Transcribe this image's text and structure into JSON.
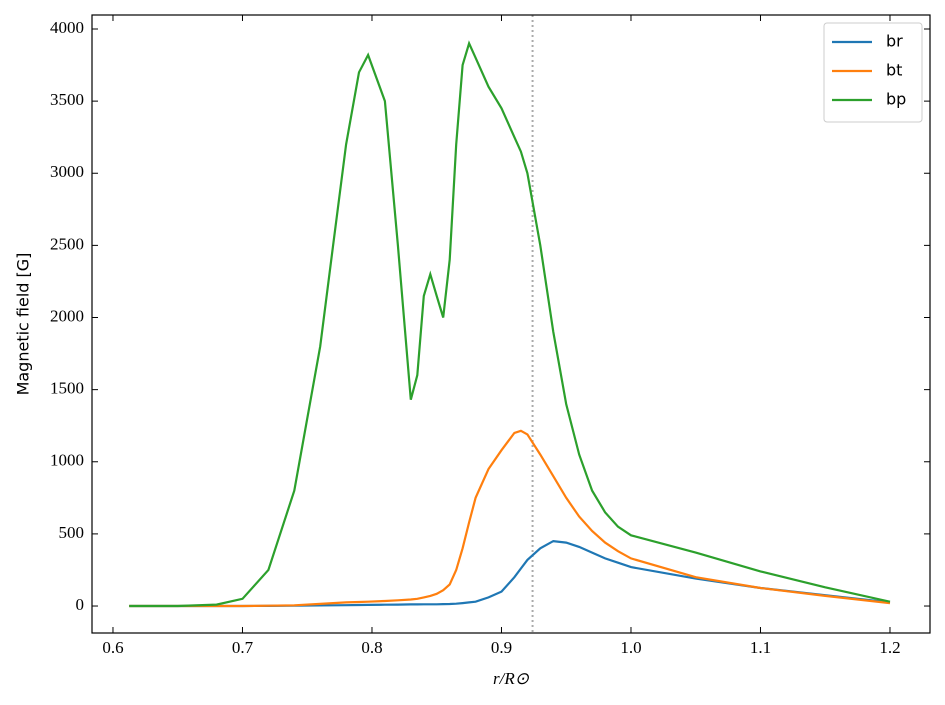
{
  "chart_data": {
    "type": "line",
    "xlabel": "r/R⊙",
    "ylabel": "Magnetic field [G]",
    "x": [
      0.6125,
      0.65,
      0.68,
      0.7,
      0.72,
      0.74,
      0.76,
      0.77,
      0.78,
      0.79,
      0.797,
      0.81,
      0.82,
      0.83,
      0.835,
      0.84,
      0.845,
      0.85,
      0.855,
      0.86,
      0.865,
      0.87,
      0.875,
      0.88,
      0.89,
      0.9,
      0.91,
      0.915,
      0.92,
      0.93,
      0.94,
      0.95,
      0.96,
      0.97,
      0.98,
      0.99,
      1.0,
      1.05,
      1.1,
      1.15,
      1.2
    ],
    "series": [
      {
        "name": "br",
        "color": "#1f77b4",
        "values": [
          0,
          0,
          0,
          0,
          1,
          2,
          4,
          5,
          6,
          7,
          8,
          9,
          10,
          11,
          11,
          12,
          12,
          12,
          13,
          14,
          16,
          20,
          25,
          30,
          60,
          100,
          200,
          260,
          320,
          400,
          450,
          440,
          410,
          370,
          330,
          300,
          270,
          190,
          125,
          75,
          25
        ]
      },
      {
        "name": "bt",
        "color": "#ff7f0e",
        "values": [
          0,
          0,
          0,
          0,
          2,
          5,
          15,
          20,
          25,
          28,
          30,
          35,
          40,
          45,
          50,
          60,
          70,
          85,
          110,
          150,
          250,
          400,
          580,
          750,
          950,
          1080,
          1200,
          1215,
          1190,
          1050,
          900,
          750,
          620,
          520,
          440,
          380,
          330,
          200,
          125,
          70,
          20
        ]
      },
      {
        "name": "bp",
        "color": "#2ca02c",
        "values": [
          0,
          0,
          10,
          50,
          250,
          800,
          1800,
          2500,
          3200,
          3700,
          3820,
          3500,
          2500,
          1430,
          1600,
          2150,
          2300,
          2150,
          2000,
          2400,
          3200,
          3750,
          3900,
          3800,
          3600,
          3450,
          3250,
          3150,
          3000,
          2500,
          1900,
          1400,
          1050,
          800,
          650,
          550,
          490,
          370,
          240,
          130,
          30
        ]
      }
    ],
    "vline": 0.924,
    "xlim": [
      0.5838,
      1.2309
    ],
    "ylim": [
      -187,
      4097
    ],
    "xticks": [
      0.6,
      0.7,
      0.8,
      0.9,
      {
        "value": 1,
        "label": "1.0"
      },
      1.1,
      1.2
    ],
    "yticks": [
      0,
      500,
      1000,
      1500,
      2000,
      2500,
      3000,
      3500,
      4000
    ],
    "legend": "upper right"
  }
}
